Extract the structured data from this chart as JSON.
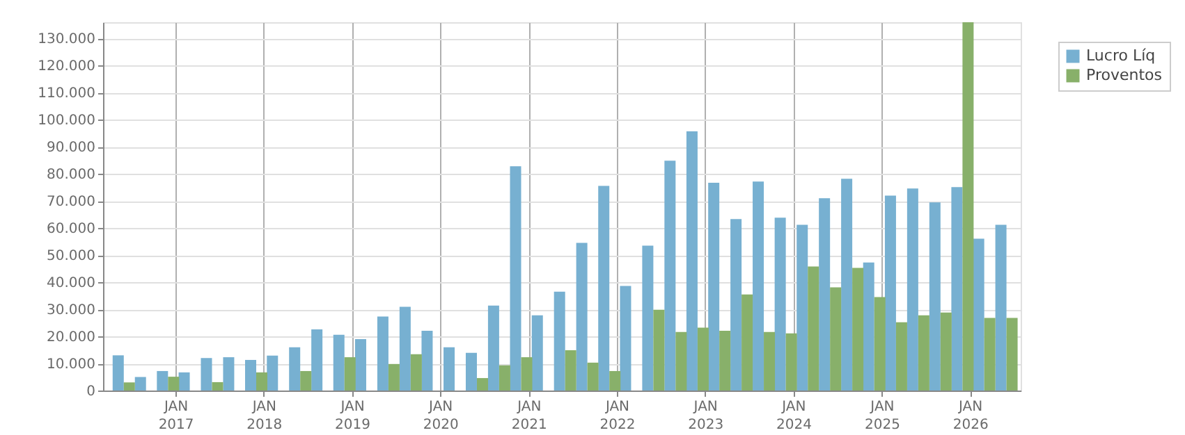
{
  "chart_data": {
    "type": "bar",
    "x": [
      "2016-06",
      "2016-09",
      "2016-12",
      "2017-03",
      "2017-06",
      "2017-09",
      "2017-12",
      "2018-03",
      "2018-06",
      "2018-09",
      "2018-12",
      "2019-03",
      "2019-06",
      "2019-09",
      "2019-12",
      "2020-03",
      "2020-06",
      "2020-09",
      "2020-12",
      "2021-03",
      "2021-06",
      "2021-09",
      "2021-12",
      "2022-03",
      "2022-06",
      "2022-09",
      "2022-12",
      "2023-03",
      "2023-06",
      "2023-09",
      "2023-12",
      "2024-03",
      "2024-06",
      "2024-09",
      "2024-12",
      "2025-03",
      "2025-06",
      "2025-09",
      "2025-12",
      "2026-03",
      "2026-06"
    ],
    "series": [
      {
        "name": "Lucro Líq",
        "color": "#77b0d1",
        "values": [
          13000,
          5000,
          7200,
          6700,
          12000,
          12300,
          11300,
          12900,
          16000,
          22600,
          20600,
          19000,
          27300,
          30900,
          22100,
          16000,
          13900,
          31400,
          82800,
          27800,
          36500,
          54500,
          75600,
          38600,
          53500,
          84900,
          95700,
          76700,
          63300,
          77200,
          63800,
          61200,
          71000,
          78200,
          47300,
          72000,
          74600,
          69500,
          75100,
          56100,
          61200
        ]
      },
      {
        "name": "Proventos",
        "color": "#88b06a",
        "values": [
          3000,
          null,
          5100,
          null,
          3100,
          null,
          6700,
          null,
          7200,
          null,
          12300,
          null,
          9800,
          13400,
          null,
          null,
          4600,
          9300,
          12300,
          null,
          14900,
          10300,
          7200,
          null,
          29800,
          21600,
          23200,
          22100,
          35500,
          21600,
          21100,
          45800,
          38100,
          45300,
          34500,
          25200,
          27800,
          28800,
          136000,
          26800,
          26800
        ]
      }
    ],
    "xlim": [
      "2016-04-05",
      "2026-07-01"
    ],
    "xticks": [
      {
        "value": "2017-01-01",
        "label": "JAN 2017"
      },
      {
        "value": "2018-01-01",
        "label": "JAN 2018"
      },
      {
        "value": "2019-01-01",
        "label": "JAN 2019"
      },
      {
        "value": "2020-01-01",
        "label": "JAN 2020"
      },
      {
        "value": "2021-01-01",
        "label": "JAN 2021"
      },
      {
        "value": "2022-01-01",
        "label": "JAN 2022"
      },
      {
        "value": "2023-01-01",
        "label": "JAN 2023"
      },
      {
        "value": "2024-01-01",
        "label": "JAN 2024"
      },
      {
        "value": "2025-01-01",
        "label": "JAN 2025"
      },
      {
        "value": "2026-01-01",
        "label": "JAN 2026"
      }
    ],
    "ylim": [
      0,
      136000
    ],
    "yticks": [
      0,
      {
        "value": 10000,
        "label": "10.000"
      },
      {
        "value": 20000,
        "label": "20.000"
      },
      {
        "value": 30000,
        "label": "30.000"
      },
      {
        "value": 40000,
        "label": "40.000"
      },
      {
        "value": 50000,
        "label": "50.000"
      },
      {
        "value": 60000,
        "label": "60.000"
      },
      {
        "value": 70000,
        "label": "70.000"
      },
      {
        "value": 80000,
        "label": "80.000"
      },
      {
        "value": 90000,
        "label": "90.000"
      },
      {
        "value": 100000,
        "label": "100.000"
      },
      {
        "value": 110000,
        "label": "110.000"
      },
      {
        "value": 120000,
        "label": "120.000"
      },
      {
        "value": 130000,
        "label": "130.000"
      }
    ],
    "grid": true,
    "legend": "top right"
  }
}
